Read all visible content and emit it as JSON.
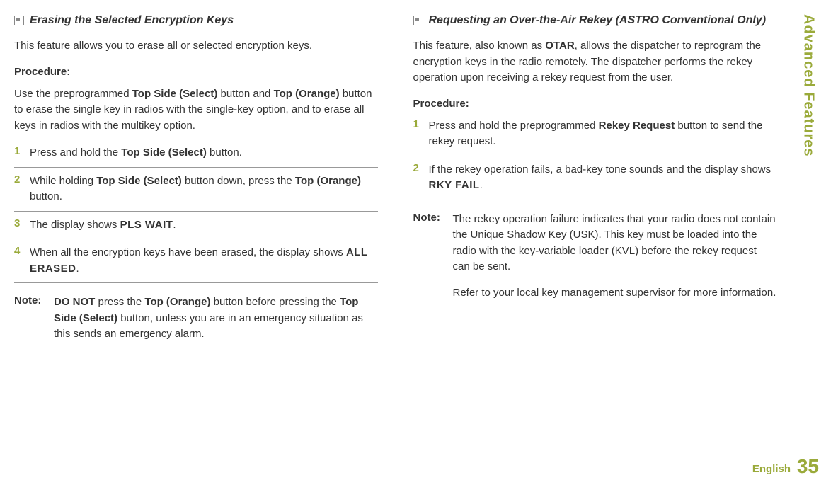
{
  "sidebar": {
    "section_label": "Advanced Features",
    "page_number": "35",
    "language": "English"
  },
  "left_column": {
    "section_title": "Erasing the Selected Encryption Keys",
    "intro": "This feature allows you to erase all or selected encryption keys.",
    "procedure_label": "Procedure:",
    "procedure_intro_parts": {
      "p1": "Use the preprogrammed ",
      "b1": "Top Side (Select)",
      "p2": " button and ",
      "b2": "Top (Orange)",
      "p3": " button to erase the single key in radios with the single-key option, and to erase all keys in radios with the multikey option."
    },
    "steps": [
      {
        "number": "1",
        "parts": {
          "p1": "Press and hold the ",
          "b1": "Top Side (Select)",
          "p2": " button."
        }
      },
      {
        "number": "2",
        "parts": {
          "p1": "While holding ",
          "b1": "Top Side (Select)",
          "p2": " button down, press the ",
          "b2": "Top (Orange)",
          "p3": " button."
        }
      },
      {
        "number": "3",
        "parts": {
          "p1": "The display shows ",
          "d1": "PLS WAIT",
          "p2": "."
        }
      },
      {
        "number": "4",
        "parts": {
          "p1": "When all the encryption keys have been erased, the display shows ",
          "d1": "ALL ERASED",
          "p2": "."
        }
      }
    ],
    "note_label": "Note:",
    "note_parts": {
      "b1": "DO NOT",
      "p1": " press the ",
      "b2": "Top (Orange)",
      "p2": " button before pressing the ",
      "b3": "Top Side (Select)",
      "p3": " button, unless you are in an emergency situation as this sends an emergency alarm."
    }
  },
  "right_column": {
    "section_title": "Requesting an Over-the-Air Rekey (ASTRO Conventional Only)",
    "intro_parts": {
      "p1": "This feature, also known as ",
      "b1": "OTAR",
      "p2": ", allows the dispatcher to reprogram the encryption keys in the radio remotely. The dispatcher performs the rekey operation upon receiving a rekey request from the user."
    },
    "procedure_label": "Procedure:",
    "steps": [
      {
        "number": "1",
        "parts": {
          "p1": "Press and hold the preprogrammed ",
          "b1": "Rekey Request",
          "p2": " button to send the rekey request."
        }
      },
      {
        "number": "2",
        "parts": {
          "p1": "If the rekey operation fails, a bad-key tone sounds and the display shows ",
          "d1": "RKY FAIL",
          "p2": "."
        }
      }
    ],
    "note_label": "Note:",
    "note_para1": "The rekey operation failure indicates that your radio does not contain the Unique Shadow Key (USK). This key must be loaded into the radio with the key-variable loader (KVL) before the rekey request can be sent.",
    "note_para2": "Refer to your local key management supervisor for more information."
  }
}
